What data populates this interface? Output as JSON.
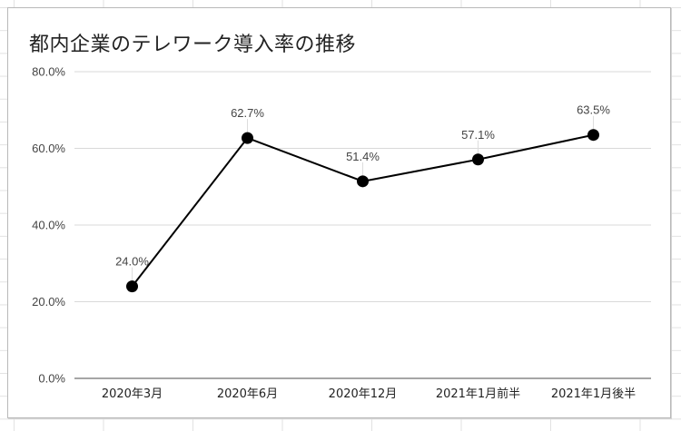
{
  "chart_data": {
    "type": "line",
    "title": "都内企業のテレワーク導入率の推移",
    "xlabel": "",
    "ylabel": "",
    "categories": [
      "2020年3月",
      "2020年6月",
      "2020年12月",
      "2021年1月前半",
      "2021年1月後半"
    ],
    "series": [
      {
        "name": "テレワーク導入率",
        "values": [
          24.0,
          62.7,
          51.4,
          57.1,
          63.5
        ],
        "labels": [
          "24.0%",
          "62.7%",
          "51.4%",
          "57.1%",
          "63.5%"
        ],
        "color": "#000000",
        "marker": "circle"
      }
    ],
    "ylim": [
      0,
      80
    ],
    "yticks": [
      0,
      20,
      40,
      60,
      80
    ],
    "ytick_labels": [
      "0.0%",
      "20.0%",
      "40.0%",
      "60.0%",
      "80.0%"
    ],
    "grid": true,
    "legend": "none",
    "data_labels": true
  },
  "colors": {
    "line": "#000000",
    "gridline": "#d9d9d9",
    "axis": "#888888",
    "sheet_grid": "#e2e2e2"
  }
}
